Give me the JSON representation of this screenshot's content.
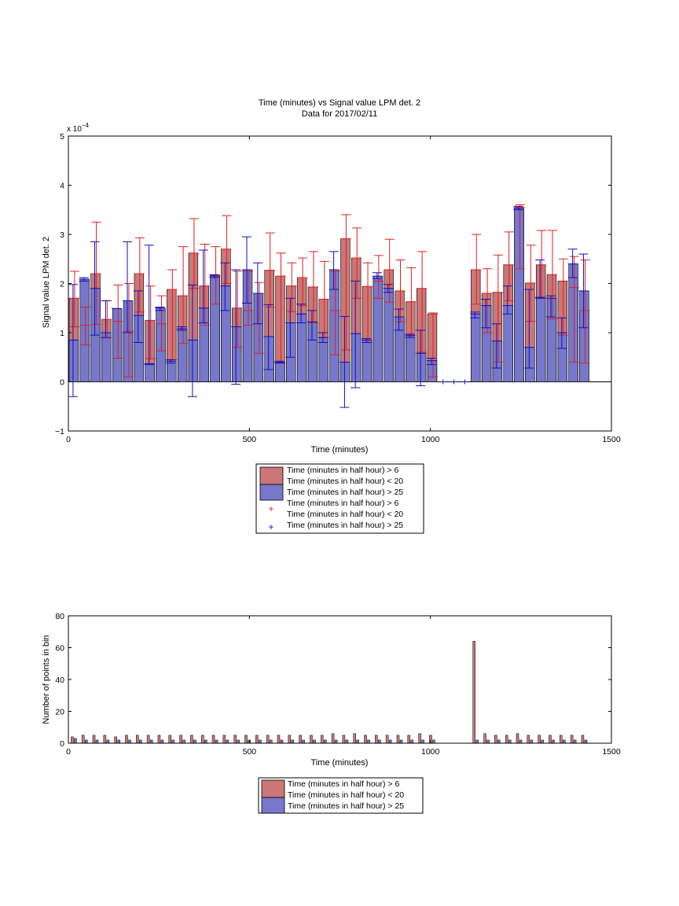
{
  "colors": {
    "red_fill": "#cc7777",
    "blue_fill": "#7777cc",
    "red_err": "#e02020",
    "blue_err": "#1010c0",
    "axis": "#000000"
  },
  "chart_data": [
    {
      "type": "bar",
      "title": "Time (minutes) vs Signal value LPM det. 2",
      "subtitle": "Data for 2017/02/11",
      "xlabel": "Time (minutes)",
      "ylabel": "Signal value LPM det. 2",
      "exponent_label": "x 10",
      "exponent_power": "−4",
      "xlim": [
        0,
        1500
      ],
      "ylim": [
        -1,
        5
      ],
      "y_scale_note": "values in units of 1e-4",
      "xticks": [
        "0",
        "500",
        "1000",
        "1500"
      ],
      "yticks": [
        "−1",
        "0",
        "1",
        "2",
        "3",
        "4",
        "5"
      ],
      "bin_width": 30,
      "legend": [
        "Time (minutes in half hour) > 6",
        "Time (minutes in half hour) < 20",
        "Time (minutes in half hour) > 25",
        "Time (minutes in half hour) > 6",
        "Time (minutes in half hour) < 20",
        "Time (minutes in half hour) > 25"
      ],
      "x": [
        15,
        45,
        75,
        105,
        135,
        165,
        195,
        225,
        255,
        285,
        315,
        345,
        375,
        405,
        435,
        465,
        495,
        525,
        555,
        585,
        615,
        645,
        675,
        705,
        735,
        765,
        795,
        825,
        855,
        885,
        915,
        945,
        975,
        1005,
        1035,
        1065,
        1095,
        1125,
        1155,
        1185,
        1215,
        1245,
        1275,
        1305,
        1335,
        1365,
        1395,
        1425
      ],
      "series": [
        {
          "name": "Time (minutes in half hour) > 6",
          "values": [
            1.7,
            1.15,
            2.2,
            1.27,
            1.23,
            1.03,
            2.2,
            1.25,
            1.18,
            1.88,
            1.75,
            2.62,
            1.95,
            2.17,
            2.7,
            1.5,
            1.45,
            1.8,
            2.27,
            2.15,
            1.95,
            2.12,
            1.93,
            1.68,
            1.45,
            2.91,
            2.52,
            1.94,
            2.05,
            2.28,
            1.85,
            1.63,
            1.9,
            1.38,
            0,
            0,
            0,
            2.28,
            1.8,
            1.82,
            2.38,
            3.55,
            2.01,
            2.38,
            2.18,
            2.05,
            1.92,
            1.45
          ],
          "err_low": [
            1.12,
            0.75,
            1.17,
            0.9,
            0.48,
            0.1,
            1.42,
            0.47,
            0.63,
            0.45,
            0.78,
            1.9,
            1.15,
            1.58,
            2.0,
            0.7,
            1.15,
            0.58,
            1.52,
            0.38,
            1.43,
            1.55,
            1.2,
            0.9,
            0.55,
            0.65,
            1.7,
            0.8,
            1.7,
            1.62,
            1.22,
            0.95,
            0.6,
            0.1,
            0,
            0,
            0,
            1.58,
            1.0,
            0.4,
            1.65,
            2.3,
            1.23,
            1.7,
            1.28,
            0.95,
            0.4,
            0.38
          ],
          "err_high": [
            2.25,
            1.52,
            3.25,
            1.65,
            1.97,
            2.0,
            2.93,
            1.95,
            1.75,
            2.28,
            2.75,
            3.32,
            2.8,
            2.75,
            3.38,
            2.25,
            2.25,
            2.02,
            3.03,
            2.62,
            2.42,
            2.52,
            2.65,
            2.45,
            2.25,
            3.4,
            3.13,
            2.42,
            2.57,
            2.9,
            2.48,
            2.32,
            2.65,
            1.4,
            0,
            0,
            0,
            3.0,
            2.3,
            2.58,
            3.05,
            3.6,
            2.78,
            3.08,
            3.08,
            2.5,
            2.55,
            2.48
          ]
        },
        {
          "name": "Time (minutes in half hour) > 25",
          "values": [
            0.85,
            2.09,
            1.9,
            1.0,
            1.49,
            1.65,
            1.35,
            0.37,
            1.5,
            0.42,
            1.08,
            0.85,
            1.5,
            2.15,
            1.95,
            1.12,
            2.28,
            1.8,
            0.92,
            0.4,
            1.2,
            1.38,
            1.22,
            0.9,
            2.28,
            0.4,
            0.98,
            0.85,
            2.15,
            1.9,
            1.32,
            0.94,
            0.58,
            0.43,
            0,
            0,
            0,
            1.38,
            1.55,
            0.83,
            1.55,
            3.53,
            0.7,
            1.72,
            1.7,
            1.0,
            2.4,
            1.85
          ],
          "err_low": [
            -0.3,
            2.05,
            0.95,
            0.9,
            1.49,
            1.0,
            0.8,
            0.35,
            1.45,
            0.38,
            1.05,
            -0.3,
            1.2,
            2.12,
            1.45,
            -0.05,
            1.6,
            1.18,
            0.25,
            0.38,
            0.5,
            1.2,
            0.85,
            0.8,
            1.88,
            -0.52,
            -0.12,
            0.8,
            2.1,
            1.82,
            1.05,
            0.9,
            -0.08,
            0.35,
            0,
            0,
            0,
            1.3,
            1.1,
            0.28,
            1.38,
            3.5,
            0.28,
            1.7,
            1.32,
            0.68,
            2.12,
            1.1
          ],
          "err_high": [
            1.98,
            2.12,
            2.85,
            1.65,
            1.49,
            2.85,
            1.85,
            2.78,
            1.52,
            0.45,
            1.12,
            1.97,
            2.68,
            2.18,
            2.42,
            2.28,
            2.95,
            2.42,
            1.57,
            0.42,
            1.7,
            1.58,
            1.45,
            1.0,
            2.65,
            1.33,
            2.05,
            0.88,
            2.22,
            1.98,
            1.48,
            0.97,
            1.05,
            0.48,
            0,
            0,
            0,
            1.42,
            1.68,
            1.18,
            1.95,
            3.57,
            1.88,
            2.48,
            1.75,
            1.3,
            2.7,
            2.6
          ]
        }
      ],
      "zero_markers_x": [
        1035,
        1065,
        1095
      ]
    },
    {
      "type": "bar",
      "xlabel": "Time (minutes)",
      "ylabel": "Number of points in bin",
      "xlim": [
        0,
        1500
      ],
      "ylim": [
        0,
        80
      ],
      "xticks": [
        "0",
        "500",
        "1000",
        "1500"
      ],
      "yticks": [
        "0",
        "20",
        "40",
        "60",
        "80"
      ],
      "legend": [
        "Time (minutes in half hour) > 6",
        "Time (minutes in half hour) < 20",
        "Time (minutes in half hour) > 25"
      ],
      "x": [
        15,
        45,
        75,
        105,
        135,
        165,
        195,
        225,
        255,
        285,
        315,
        345,
        375,
        405,
        435,
        465,
        495,
        525,
        555,
        585,
        615,
        645,
        675,
        705,
        735,
        765,
        795,
        825,
        855,
        885,
        915,
        945,
        975,
        1005,
        1035,
        1065,
        1095,
        1125,
        1155,
        1185,
        1215,
        1245,
        1275,
        1305,
        1335,
        1365,
        1395,
        1425
      ],
      "series": [
        {
          "name": "Time (minutes in half hour) > 6",
          "values": [
            4,
            5,
            5,
            5,
            4,
            5,
            5,
            5,
            5,
            5,
            5,
            5,
            5,
            5,
            5,
            5,
            5,
            5,
            5,
            5,
            5,
            5,
            5,
            5,
            6,
            5,
            6,
            5,
            5,
            5,
            5,
            5,
            6,
            5,
            0,
            0,
            0,
            64,
            6,
            5,
            5,
            6,
            5,
            5,
            5,
            5,
            5,
            5
          ]
        },
        {
          "name": "Time (minutes in half hour) > 25",
          "values": [
            3,
            2,
            2,
            2,
            2,
            2,
            2,
            2,
            2,
            2,
            2,
            2,
            2,
            2,
            2,
            2,
            2,
            2,
            2,
            2,
            2,
            2,
            2,
            2,
            2,
            2,
            2,
            2,
            2,
            2,
            2,
            2,
            2,
            2,
            0,
            0,
            0,
            2,
            2,
            2,
            2,
            2,
            2,
            2,
            2,
            2,
            2,
            2
          ]
        }
      ]
    }
  ]
}
